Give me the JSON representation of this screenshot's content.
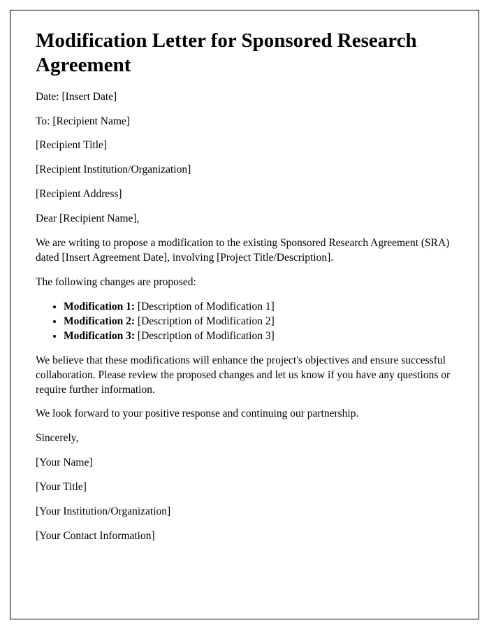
{
  "title": "Modification Letter for Sponsored Research Agreement",
  "date_line": "Date: [Insert Date]",
  "to_line": "To: [Recipient Name]",
  "recipient_title": "[Recipient Title]",
  "recipient_org": "[Recipient Institution/Organization]",
  "recipient_address": "[Recipient Address]",
  "salutation": "Dear [Recipient Name],",
  "intro": "We are writing to propose a modification to the existing Sponsored Research Agreement (SRA) dated [Insert Agreement Date], involving [Project Title/Description].",
  "changes_lead": "The following changes are proposed:",
  "mods": [
    {
      "label": "Modification 1:",
      "desc": " [Description of Modification 1]"
    },
    {
      "label": "Modification 2:",
      "desc": " [Description of Modification 2]"
    },
    {
      "label": "Modification 3:",
      "desc": " [Description of Modification 3]"
    }
  ],
  "body2": "We believe that these modifications will enhance the project's objectives and ensure successful collaboration. Please review the proposed changes and let us know if you have any questions or require further information.",
  "body3": "We look forward to your positive response and continuing our partnership.",
  "closing": "Sincerely,",
  "sender_name": "[Your Name]",
  "sender_title": "[Your Title]",
  "sender_org": "[Your Institution/Organization]",
  "sender_contact": "[Your Contact Information]"
}
